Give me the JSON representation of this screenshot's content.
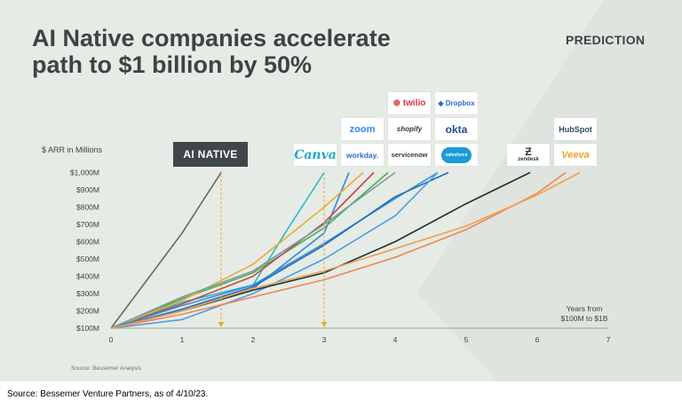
{
  "title_line1": "AI Native companies accelerate",
  "title_line2": "path to $1 billion by 50%",
  "tag": "PREDICTION",
  "badge": "AI NATIVE",
  "inner_source": "Source: Bessemer Analysis",
  "footer": "Source: Bessemer Venture Partners, as of 4/10/23.",
  "logos": [
    {
      "name": "twilio",
      "label": "⊛ twilio",
      "color": "#e0313f"
    },
    {
      "name": "dropbox",
      "label": "◆ Dropbox",
      "color": "#2a6ad8"
    },
    {
      "name": "zoom",
      "label": "zoom",
      "color": "#2d8cff"
    },
    {
      "name": "shopify",
      "label": "shopify",
      "color": "#2f3a2f"
    },
    {
      "name": "okta",
      "label": "okta",
      "color": "#1f4b8f"
    },
    {
      "name": "hubspot",
      "label": "HubSpot",
      "color": "#33475b"
    },
    {
      "name": "canva",
      "label": "Canva",
      "color": "#1ea8c8"
    },
    {
      "name": "workday",
      "label": "workday.",
      "color": "#2a6ad8"
    },
    {
      "name": "servicenow",
      "label": "servicenow",
      "color": "#2f3a2f"
    },
    {
      "name": "salesforce",
      "label": "salesforce",
      "color": "#ffffff"
    },
    {
      "name": "zendesk",
      "label": "zendesk",
      "color": "#2f3a2f"
    },
    {
      "name": "veeva",
      "label": "Veeva",
      "color": "#f3a124"
    }
  ],
  "chart_data": {
    "type": "line",
    "ylabel": "$ ARR in Millions",
    "xlabel": "Years from $100M to $1B",
    "xlim": [
      0,
      7
    ],
    "ylim": [
      100,
      1000
    ],
    "x_ticks": [
      "0",
      "1",
      "2",
      "3",
      "4",
      "5",
      "6",
      "7"
    ],
    "y_ticks": [
      "$100M",
      "$200M",
      "$300M",
      "$400M",
      "$500M",
      "$600M",
      "$700M",
      "$800M",
      "$900M",
      "$1,000M"
    ],
    "annotations": [
      {
        "label": "AI NATIVE",
        "type": "dashed-vertical",
        "x": 1.55
      },
      {
        "type": "dashed-vertical",
        "x": 3.0
      }
    ],
    "series": [
      {
        "color": "#5f6666",
        "points": [
          [
            0,
            100
          ],
          [
            1,
            650
          ],
          [
            1.55,
            1000
          ]
        ]
      },
      {
        "color": "#2bb8cf",
        "points": [
          [
            0,
            100
          ],
          [
            1,
            250
          ],
          [
            2,
            350
          ],
          [
            2.45,
            650
          ],
          [
            3,
            1000
          ]
        ]
      },
      {
        "color": "#2f86e0",
        "points": [
          [
            0,
            100
          ],
          [
            1,
            200
          ],
          [
            2,
            330
          ],
          [
            3,
            650
          ],
          [
            3.35,
            1000
          ]
        ]
      },
      {
        "color": "#4bb04b",
        "points": [
          [
            0,
            100
          ],
          [
            1,
            270
          ],
          [
            2,
            420
          ],
          [
            3,
            680
          ],
          [
            3.9,
            1000
          ]
        ]
      },
      {
        "color": "#c44848",
        "points": [
          [
            0,
            100
          ],
          [
            1,
            240
          ],
          [
            2,
            400
          ],
          [
            3,
            710
          ],
          [
            3.7,
            1000
          ]
        ]
      },
      {
        "color": "#f0a830",
        "points": [
          [
            0,
            100
          ],
          [
            1,
            260
          ],
          [
            2,
            470
          ],
          [
            3,
            800
          ],
          [
            3.55,
            1000
          ]
        ]
      },
      {
        "color": "#7a9aa8",
        "points": [
          [
            0,
            100
          ],
          [
            1,
            280
          ],
          [
            2,
            430
          ],
          [
            3,
            700
          ],
          [
            4,
            1000
          ]
        ]
      },
      {
        "color": "#3a8ed4",
        "points": [
          [
            0,
            100
          ],
          [
            1,
            230
          ],
          [
            2,
            350
          ],
          [
            3,
            590
          ],
          [
            4,
            850
          ],
          [
            4.6,
            1000
          ]
        ]
      },
      {
        "color": "#1f6fc0",
        "points": [
          [
            0,
            100
          ],
          [
            1,
            210
          ],
          [
            2,
            340
          ],
          [
            3,
            580
          ],
          [
            4,
            860
          ],
          [
            4.75,
            1000
          ]
        ]
      },
      {
        "color": "#4a9ee6",
        "points": [
          [
            0,
            100
          ],
          [
            1,
            150
          ],
          [
            2,
            300
          ],
          [
            3,
            500
          ],
          [
            4,
            750
          ],
          [
            4.6,
            1000
          ]
        ]
      },
      {
        "color": "#1e3030",
        "points": [
          [
            0,
            100
          ],
          [
            1,
            200
          ],
          [
            2,
            320
          ],
          [
            3,
            420
          ],
          [
            4,
            600
          ],
          [
            5,
            820
          ],
          [
            5.9,
            1000
          ]
        ]
      },
      {
        "color": "#f08450",
        "points": [
          [
            0,
            100
          ],
          [
            1,
            180
          ],
          [
            2,
            280
          ],
          [
            3,
            380
          ],
          [
            4,
            510
          ],
          [
            5,
            670
          ],
          [
            6,
            880
          ],
          [
            6.4,
            1000
          ]
        ]
      },
      {
        "color": "#f0a050",
        "points": [
          [
            0,
            100
          ],
          [
            1,
            200
          ],
          [
            2,
            330
          ],
          [
            3,
            430
          ],
          [
            4,
            560
          ],
          [
            5,
            690
          ],
          [
            6,
            870
          ],
          [
            6.6,
            1000
          ]
        ]
      }
    ]
  }
}
